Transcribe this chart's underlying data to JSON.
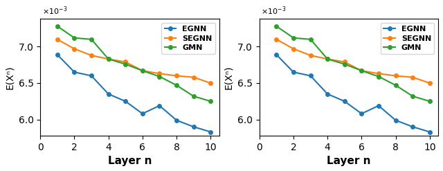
{
  "x": [
    1,
    2,
    3,
    4,
    5,
    6,
    7,
    8,
    9,
    10
  ],
  "egnn": [
    0.00689,
    0.00665,
    0.0066,
    0.00635,
    0.00625,
    0.00608,
    0.00619,
    0.00599,
    0.0059,
    0.00583
  ],
  "segnn": [
    0.0071,
    0.00697,
    0.00688,
    0.00683,
    0.00679,
    0.00667,
    0.00663,
    0.0066,
    0.00658,
    0.0065
  ],
  "gmn": [
    0.00728,
    0.00712,
    0.0071,
    0.00683,
    0.00676,
    0.00667,
    0.00659,
    0.00647,
    0.00632,
    0.00625
  ],
  "egnn_color": "#1f77b4",
  "segnn_color": "#ff7f0e",
  "gmn_color": "#2ca02c",
  "ylabel": "E(Xⁿ)",
  "xlabel": "Layer n",
  "ylim": [
    0.00578,
    0.00738
  ],
  "xlim": [
    0,
    10.5
  ]
}
